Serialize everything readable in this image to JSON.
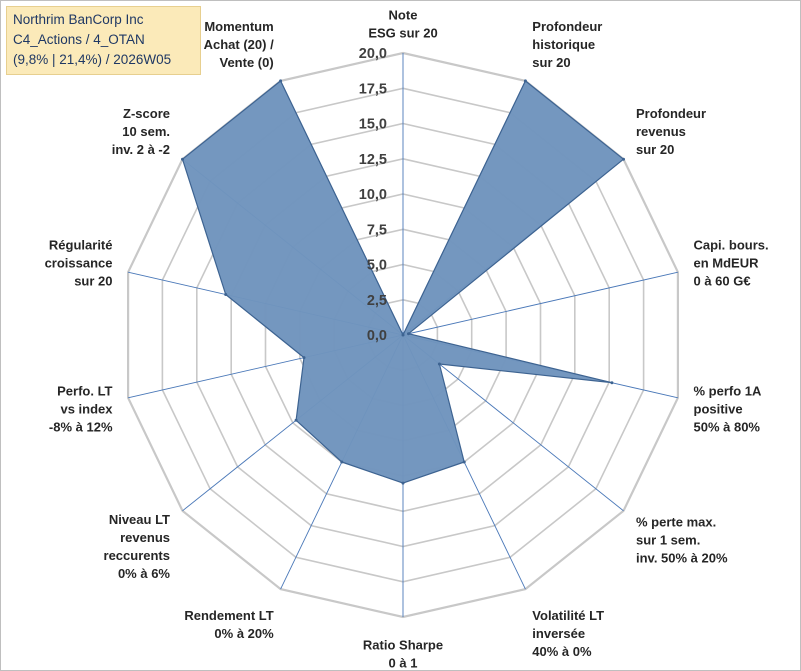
{
  "title": {
    "line1": "Northrim BanCorp Inc",
    "line2": "C4_Actions / 4_OTAN",
    "line3": "(9,8% | 21,4%) / 2026W05"
  },
  "chart_data": {
    "type": "radar",
    "title": "Northrim BanCorp Inc — C4_Actions / 4_OTAN — (9,8% | 21,4%) / 2026W05",
    "rmin": 0,
    "rmax": 20,
    "tick_step": 2.5,
    "tick_labels": [
      "0,0",
      "2,5",
      "5,0",
      "7,5",
      "10,0",
      "12,5",
      "15,0",
      "17,5",
      "20,0"
    ],
    "categories": [
      [
        "Note",
        "ESG sur 20"
      ],
      [
        "Profondeur",
        "historique",
        "sur 20"
      ],
      [
        "Profondeur",
        "revenus",
        "sur 20"
      ],
      [
        "Capi. bours.",
        "en MdEUR",
        "0 à 60 G€"
      ],
      [
        "% perfo 1A",
        "positive",
        "50% à 80%"
      ],
      [
        "% perte max.",
        "sur 1 sem.",
        "inv. 50% à 20%"
      ],
      [
        "Volatilité LT",
        "inversée",
        "40% à 0%"
      ],
      [
        "Ratio Sharpe",
        "0 à 1"
      ],
      [
        "Rendement LT",
        "0% à 20%"
      ],
      [
        "Niveau LT",
        "revenus",
        "reccurents",
        "0% à 6%"
      ],
      [
        "Perfo. LT",
        "vs index",
        "-8% à 12%"
      ],
      [
        "Régularité",
        "croissance",
        "sur 20"
      ],
      [
        "Z-score",
        "10 sem.",
        "inv. 2 à -2"
      ],
      [
        "Momentum",
        "Achat (20) /",
        "Vente (0)"
      ]
    ],
    "series": [
      {
        "name": "Northrim BanCorp Inc",
        "values": [
          0,
          20,
          20,
          0.4,
          15.2,
          3.3,
          10.0,
          10.5,
          10.0,
          9.7,
          7.2,
          12.9,
          20,
          20
        ],
        "color": "#6f94bd",
        "edge": "#3d6391"
      }
    ],
    "grid_color": "#c8c8c8",
    "spoke_color": "#4a78b8"
  }
}
